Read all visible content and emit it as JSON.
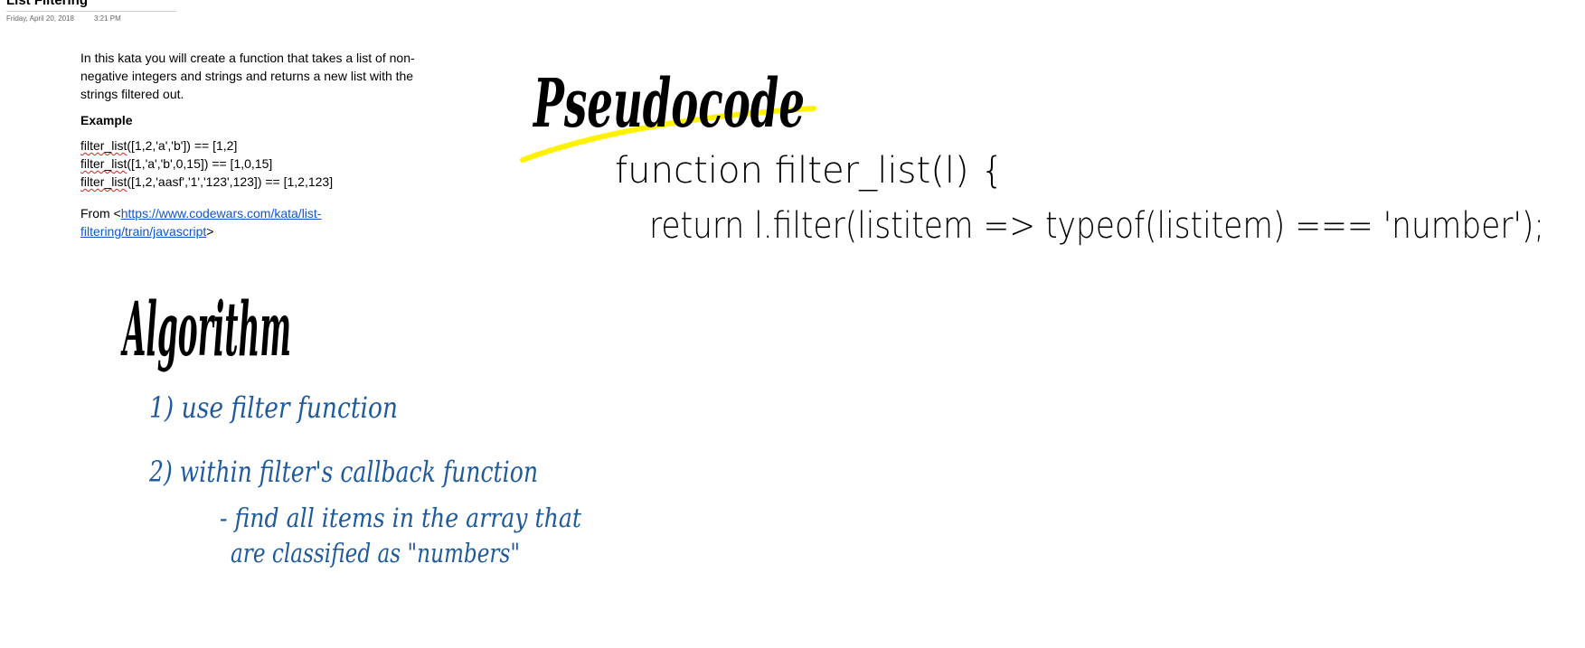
{
  "page": {
    "title": "List Filtering",
    "date": "Friday, April 20, 2018",
    "time": "3:21 PM"
  },
  "note": {
    "intro": "In this kata you will create a function that takes a list of non-negative integers and strings and returns a new list with the strings filtered out.",
    "example_heading": "Example",
    "examples": [
      {
        "fn": "filter_list",
        "rest": "([1,2,'a','b']) == [1,2]"
      },
      {
        "fn": "filter_list",
        "rest": "([1,'a','b',0,15]) == [1,0,15]"
      },
      {
        "fn": "filter_list",
        "rest": "([1,2,'aasf','1','123',123]) == [1,2,123]"
      }
    ],
    "from_prefix": "From <",
    "link": "https://www.codewars.com/kata/list-filtering/train/javascript",
    "from_suffix": ">"
  },
  "ink": {
    "pseudocode_heading": "Pseudocode",
    "pseudo_line1": "function  filter_list(l)   {",
    "pseudo_line2": "return   l.filter(listitem => typeof(listitem) === 'number');",
    "algorithm_heading": "Algorithm",
    "steps": [
      "1) use filter function",
      "2) within filter's callback function",
      "- find all items in the array that",
      "are classified as \"numbers\""
    ],
    "colors": {
      "black": "#000000",
      "blue": "#1f5a9c",
      "highlight": "#fff200"
    }
  }
}
